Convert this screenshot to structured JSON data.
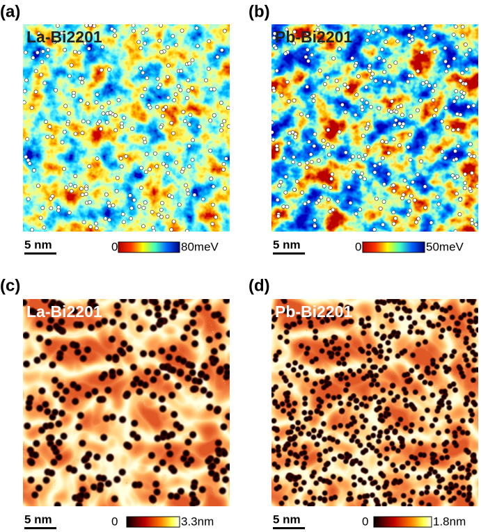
{
  "panels": [
    {
      "label": "(a)",
      "title": "La-Bi2201",
      "scale_bar": "5 nm",
      "colorbar": {
        "min": "0",
        "max": "80meV"
      }
    },
    {
      "label": "(b)",
      "title": "Pb-Bi2201",
      "scale_bar": "5 nm",
      "colorbar": {
        "min": "0",
        "max": "50meV"
      }
    },
    {
      "label": "(c)",
      "title": "La-Bi2201",
      "scale_bar": "5 nm",
      "colorbar": {
        "min": "0",
        "max": "3.3nm"
      }
    },
    {
      "label": "(d)",
      "title": "Pb-Bi2201",
      "scale_bar": "5 nm",
      "colorbar": {
        "min": "0",
        "max": "1.8nm"
      }
    }
  ]
}
